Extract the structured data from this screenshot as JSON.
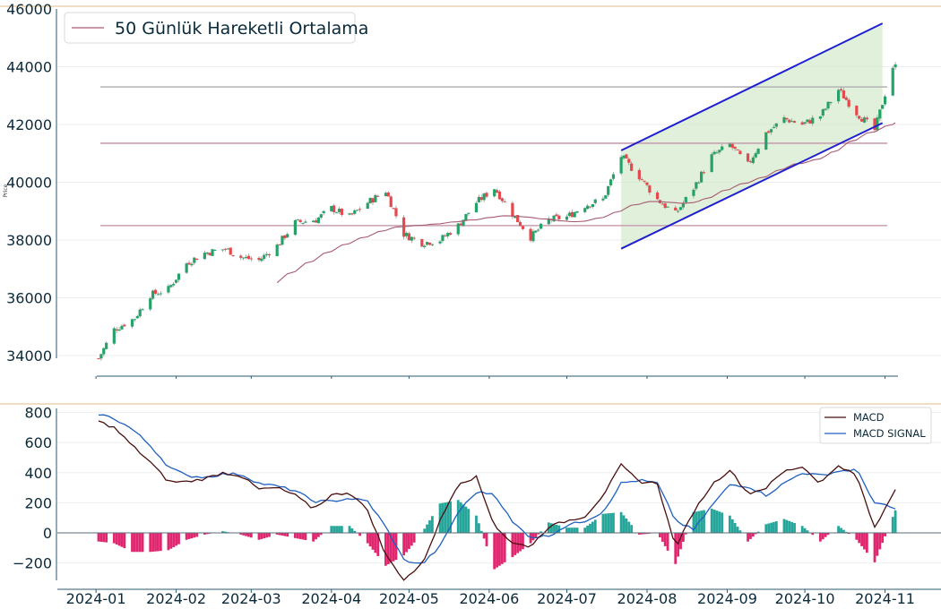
{
  "chart_data": [
    {
      "type": "candlestick",
      "ylabel": "Price",
      "ylim": [
        33000,
        46000
      ],
      "y_ticks": [
        "34000",
        "36000",
        "38000",
        "40000",
        "42000",
        "44000",
        "46000"
      ],
      "legend": {
        "label": "50 Günlük Hareketli Ortalama",
        "placement": "top-left"
      },
      "grid": true,
      "colors": {
        "up": "#26a269",
        "down": "#e5484d",
        "ma": "#a85a72",
        "channel": "#1f1fd0",
        "channel_fill": "#cfe8c6",
        "hline_top": "#b8b8b8",
        "hline_mid": "#c9a0b0",
        "hline_low": "#c9a0b0",
        "separator": "#e8c9a0",
        "axis": "#2a5a70"
      },
      "horizontal_levels": [
        43300,
        41350,
        38500
      ],
      "channel": {
        "start": "2024-07-22",
        "end": "2024-10-31",
        "upper": [
          41100,
          45500
        ],
        "lower": [
          37700,
          42050
        ]
      },
      "price_anchors": [
        [
          "2024-01-02",
          33900
        ],
        [
          "2024-01-08",
          34900
        ],
        [
          "2024-01-16",
          35300
        ],
        [
          "2024-01-22",
          36100
        ],
        [
          "2024-01-29",
          36300
        ],
        [
          "2024-02-05",
          37200
        ],
        [
          "2024-02-12",
          37550
        ],
        [
          "2024-02-20",
          37700
        ],
        [
          "2024-02-26",
          37400
        ],
        [
          "2024-03-04",
          37300
        ],
        [
          "2024-03-11",
          37800
        ],
        [
          "2024-03-18",
          38600
        ],
        [
          "2024-03-26",
          38700
        ],
        [
          "2024-04-01",
          39100
        ],
        [
          "2024-04-08",
          38800
        ],
        [
          "2024-04-15",
          39300
        ],
        [
          "2024-04-22",
          39700
        ],
        [
          "2024-04-29",
          38200
        ],
        [
          "2024-05-06",
          37900
        ],
        [
          "2024-05-13",
          38000
        ],
        [
          "2024-05-20",
          38500
        ],
        [
          "2024-05-27",
          39300
        ],
        [
          "2024-06-03",
          39800
        ],
        [
          "2024-06-10",
          38900
        ],
        [
          "2024-06-17",
          38100
        ],
        [
          "2024-06-24",
          38700
        ],
        [
          "2024-07-01",
          38800
        ],
        [
          "2024-07-08",
          39200
        ],
        [
          "2024-07-15",
          39400
        ],
        [
          "2024-07-22",
          40900
        ],
        [
          "2024-07-29",
          40200
        ],
        [
          "2024-08-05",
          39400
        ],
        [
          "2024-08-12",
          38900
        ],
        [
          "2024-08-19",
          39800
        ],
        [
          "2024-08-26",
          40900
        ],
        [
          "2024-09-02",
          41300
        ],
        [
          "2024-09-09",
          40600
        ],
        [
          "2024-09-16",
          41700
        ],
        [
          "2024-09-23",
          42200
        ],
        [
          "2024-09-30",
          42000
        ],
        [
          "2024-10-07",
          42300
        ],
        [
          "2024-10-14",
          43200
        ],
        [
          "2024-10-21",
          42400
        ],
        [
          "2024-10-28",
          41800
        ],
        [
          "2024-11-04",
          44000
        ]
      ]
    },
    {
      "type": "line",
      "ylim": [
        -320,
        800
      ],
      "y_ticks": [
        "800",
        "600",
        "400",
        "200",
        "0",
        "−200"
      ],
      "x_ticks": [
        "2024-01",
        "2024-02",
        "2024-03",
        "2024-04",
        "2024-05",
        "2024-06",
        "2024-07",
        "2024-08",
        "2024-09",
        "2024-10",
        "2024-11"
      ],
      "legend": {
        "placement": "top-right"
      },
      "colors": {
        "macd": "#4a0f0f",
        "signal": "#1f5fbf",
        "hist_pos": "#26a69a",
        "hist_neg": "#e0266e"
      },
      "series": [
        {
          "name": "MACD",
          "points": [
            [
              "2024-01-02",
              740
            ],
            [
              "2024-01-08",
              700
            ],
            [
              "2024-01-15",
              580
            ],
            [
              "2024-01-22",
              470
            ],
            [
              "2024-01-29",
              340
            ],
            [
              "2024-02-05",
              340
            ],
            [
              "2024-02-12",
              360
            ],
            [
              "2024-02-19",
              400
            ],
            [
              "2024-02-26",
              380
            ],
            [
              "2024-03-04",
              290
            ],
            [
              "2024-03-11",
              300
            ],
            [
              "2024-03-18",
              250
            ],
            [
              "2024-03-25",
              160
            ],
            [
              "2024-04-01",
              250
            ],
            [
              "2024-04-08",
              270
            ],
            [
              "2024-04-15",
              150
            ],
            [
              "2024-04-22",
              -150
            ],
            [
              "2024-04-29",
              -310
            ],
            [
              "2024-05-06",
              -210
            ],
            [
              "2024-05-13",
              80
            ],
            [
              "2024-05-20",
              330
            ],
            [
              "2024-05-27",
              370
            ],
            [
              "2024-06-03",
              50
            ],
            [
              "2024-06-10",
              -70
            ],
            [
              "2024-06-17",
              -90
            ],
            [
              "2024-06-24",
              40
            ],
            [
              "2024-07-01",
              80
            ],
            [
              "2024-07-08",
              110
            ],
            [
              "2024-07-15",
              250
            ],
            [
              "2024-07-22",
              450
            ],
            [
              "2024-07-29",
              340
            ],
            [
              "2024-08-05",
              330
            ],
            [
              "2024-08-12",
              -100
            ],
            [
              "2024-08-19",
              140
            ],
            [
              "2024-08-26",
              320
            ],
            [
              "2024-09-02",
              420
            ],
            [
              "2024-09-09",
              260
            ],
            [
              "2024-09-16",
              300
            ],
            [
              "2024-09-23",
              410
            ],
            [
              "2024-09-30",
              440
            ],
            [
              "2024-10-07",
              330
            ],
            [
              "2024-10-14",
              450
            ],
            [
              "2024-10-21",
              380
            ],
            [
              "2024-10-28",
              30
            ],
            [
              "2024-11-05",
              290
            ]
          ]
        },
        {
          "name": "MACD SIGNAL",
          "points": [
            [
              "2024-01-02",
              790
            ],
            [
              "2024-01-08",
              760
            ],
            [
              "2024-01-15",
              690
            ],
            [
              "2024-01-22",
              580
            ],
            [
              "2024-01-29",
              440
            ],
            [
              "2024-02-05",
              380
            ],
            [
              "2024-02-12",
              370
            ],
            [
              "2024-02-19",
              390
            ],
            [
              "2024-02-26",
              390
            ],
            [
              "2024-03-04",
              330
            ],
            [
              "2024-03-11",
              310
            ],
            [
              "2024-03-18",
              280
            ],
            [
              "2024-03-25",
              210
            ],
            [
              "2024-04-01",
              210
            ],
            [
              "2024-04-08",
              230
            ],
            [
              "2024-04-15",
              210
            ],
            [
              "2024-04-22",
              40
            ],
            [
              "2024-04-29",
              -180
            ],
            [
              "2024-05-06",
              -210
            ],
            [
              "2024-05-13",
              -90
            ],
            [
              "2024-05-20",
              140
            ],
            [
              "2024-05-27",
              270
            ],
            [
              "2024-06-03",
              260
            ],
            [
              "2024-06-10",
              70
            ],
            [
              "2024-06-17",
              -30
            ],
            [
              "2024-06-24",
              -20
            ],
            [
              "2024-07-01",
              50
            ],
            [
              "2024-07-08",
              80
            ],
            [
              "2024-07-15",
              140
            ],
            [
              "2024-07-22",
              330
            ],
            [
              "2024-07-29",
              350
            ],
            [
              "2024-08-05",
              330
            ],
            [
              "2024-08-12",
              80
            ],
            [
              "2024-08-19",
              20
            ],
            [
              "2024-08-26",
              180
            ],
            [
              "2024-09-02",
              320
            ],
            [
              "2024-09-09",
              310
            ],
            [
              "2024-09-16",
              250
            ],
            [
              "2024-09-23",
              330
            ],
            [
              "2024-09-30",
              400
            ],
            [
              "2024-10-07",
              380
            ],
            [
              "2024-10-14",
              410
            ],
            [
              "2024-10-21",
              420
            ],
            [
              "2024-10-28",
              200
            ],
            [
              "2024-11-05",
              160
            ]
          ]
        }
      ]
    }
  ]
}
